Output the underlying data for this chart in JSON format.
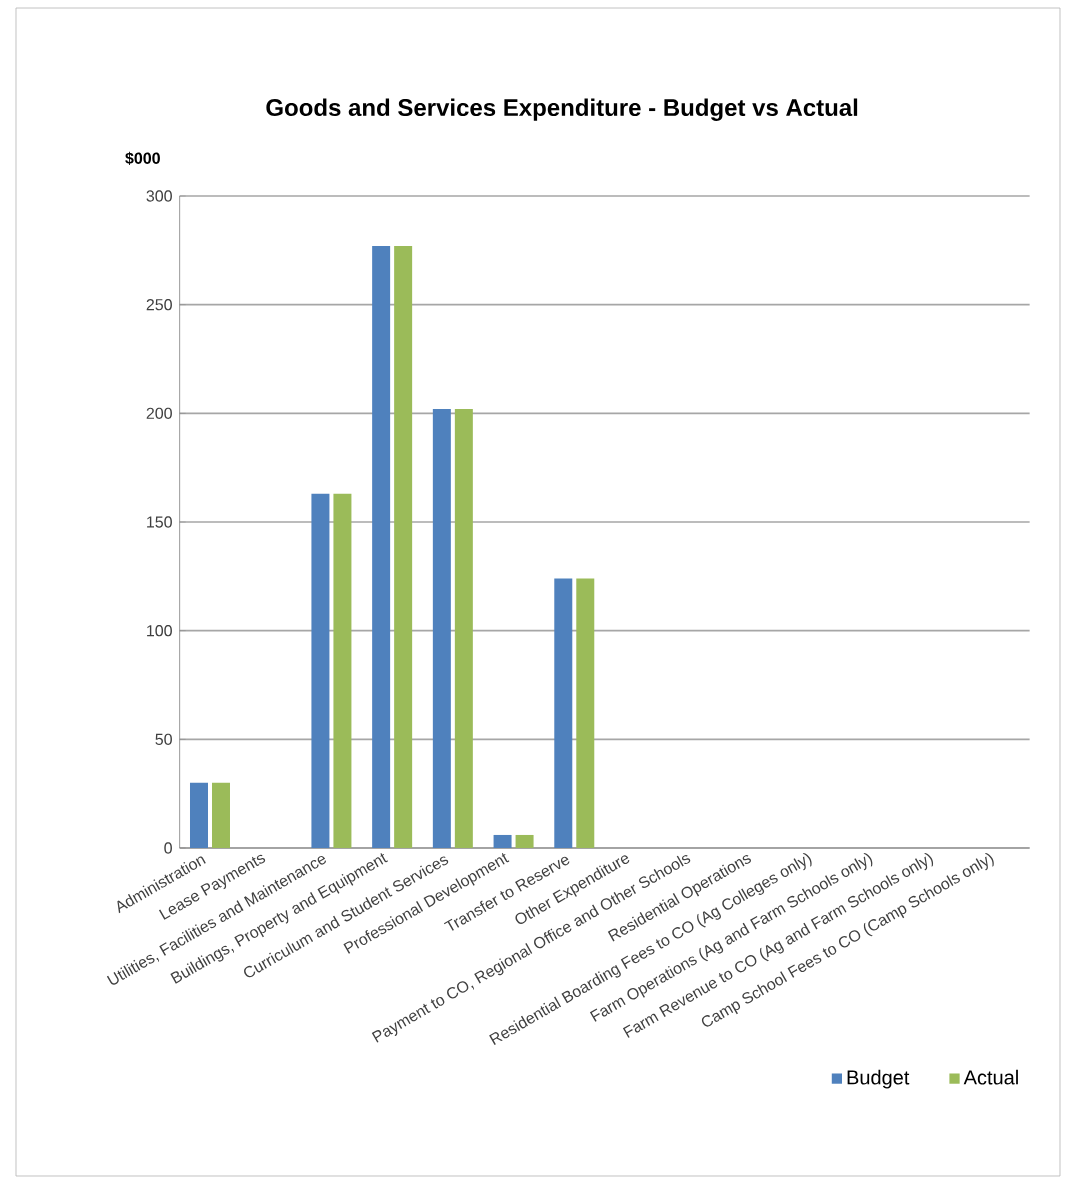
{
  "chart_data": {
    "type": "bar",
    "title": "Goods and Services Expenditure - Budget vs Actual",
    "ylabel": "$000",
    "categories": [
      "Administration",
      "Lease Payments",
      "Utilities, Facilities and Maintenance",
      "Buildings, Property and Equipment",
      "Curriculum and Student Services",
      "Professional Development",
      "Transfer to Reserve",
      "Other Expenditure",
      "Payment to CO, Regional Office and Other Schools",
      "Residential Operations",
      "Residential Boarding Fees to CO (Ag Colleges only)",
      "Farm Operations (Ag and Farm Schools only)",
      "Farm Revenue to CO (Ag and Farm Schools only)",
      "Camp School Fees to CO (Camp Schools only)"
    ],
    "series": [
      {
        "name": "Budget",
        "color": "#4f81bd",
        "values": [
          30,
          0,
          163,
          277,
          202,
          6,
          124,
          0,
          0,
          0,
          0,
          0,
          0,
          0
        ]
      },
      {
        "name": "Actual",
        "color": "#9bbb59",
        "values": [
          30,
          0,
          163,
          277,
          202,
          6,
          124,
          0,
          0,
          0,
          0,
          0,
          0,
          0
        ]
      }
    ],
    "ylim": [
      0,
      300
    ],
    "yticks": [
      0,
      50,
      100,
      150,
      200,
      250,
      300
    ],
    "grid": "y",
    "legend": "bottom right"
  }
}
